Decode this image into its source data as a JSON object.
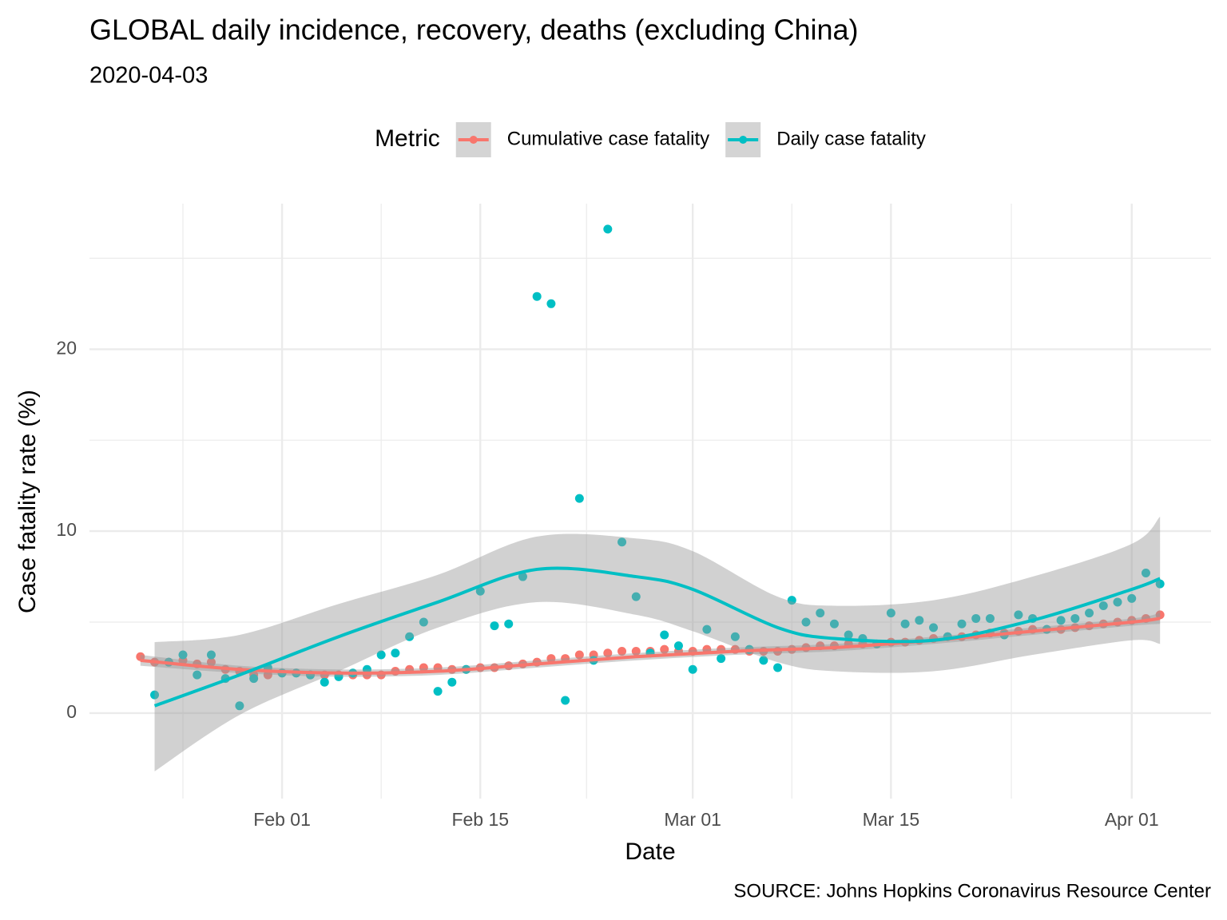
{
  "chart_data": {
    "type": "scatter",
    "title": "GLOBAL daily incidence, recovery, deaths (excluding China)",
    "subtitle": "2020-04-03",
    "x_label": "Date",
    "y_label": "Case fatality rate (%)",
    "caption": "SOURCE: Johns Hopkins Coronavirus Resource Center",
    "legend_title": "Metric",
    "legend_position": "top",
    "grid": true,
    "x": [
      "Jan 22",
      "Jan 23",
      "Jan 24",
      "Jan 25",
      "Jan 26",
      "Jan 27",
      "Jan 28",
      "Jan 29",
      "Jan 30",
      "Jan 31",
      "Feb 01",
      "Feb 02",
      "Feb 03",
      "Feb 04",
      "Feb 05",
      "Feb 06",
      "Feb 07",
      "Feb 08",
      "Feb 09",
      "Feb 10",
      "Feb 11",
      "Feb 12",
      "Feb 13",
      "Feb 14",
      "Feb 15",
      "Feb 16",
      "Feb 17",
      "Feb 18",
      "Feb 19",
      "Feb 20",
      "Feb 21",
      "Feb 22",
      "Feb 23",
      "Feb 24",
      "Feb 25",
      "Feb 26",
      "Feb 27",
      "Feb 28",
      "Feb 29",
      "Mar 01",
      "Mar 02",
      "Mar 03",
      "Mar 04",
      "Mar 05",
      "Mar 06",
      "Mar 07",
      "Mar 08",
      "Mar 09",
      "Mar 10",
      "Mar 11",
      "Mar 12",
      "Mar 13",
      "Mar 14",
      "Mar 15",
      "Mar 16",
      "Mar 17",
      "Mar 18",
      "Mar 19",
      "Mar 20",
      "Mar 21",
      "Mar 22",
      "Mar 23",
      "Mar 24",
      "Mar 25",
      "Mar 26",
      "Mar 27",
      "Mar 28",
      "Mar 29",
      "Mar 30",
      "Mar 31",
      "Apr 01",
      "Apr 02",
      "Apr 03"
    ],
    "xticks": [
      "Feb 01",
      "Feb 15",
      "Mar 01",
      "Mar 15",
      "Apr 01"
    ],
    "ylim": [
      -4.7,
      28
    ],
    "yticks": [
      0,
      10,
      20
    ],
    "series": [
      {
        "name": "Cumulative case fatality",
        "color": "#F8766D",
        "values": [
          3.1,
          2.8,
          2.8,
          2.9,
          2.7,
          2.8,
          2.4,
          2.3,
          2.1,
          2.1,
          2.2,
          2.2,
          2.1,
          2.1,
          2.1,
          2.1,
          2.1,
          2.1,
          2.3,
          2.4,
          2.5,
          2.5,
          2.4,
          2.4,
          2.5,
          2.5,
          2.6,
          2.7,
          2.8,
          3.0,
          3.0,
          3.2,
          3.2,
          3.3,
          3.4,
          3.4,
          3.4,
          3.5,
          3.4,
          3.4,
          3.5,
          3.5,
          3.5,
          3.4,
          3.4,
          3.4,
          3.5,
          3.6,
          3.7,
          3.7,
          3.8,
          3.8,
          3.8,
          3.9,
          3.9,
          4.0,
          4.1,
          4.2,
          4.2,
          4.3,
          4.4,
          4.4,
          4.5,
          4.6,
          4.6,
          4.6,
          4.7,
          4.8,
          4.9,
          5.0,
          5.1,
          5.2,
          5.4
        ],
        "smooth": {
          "x": [
            "Jan 22",
            "Jan 29",
            "Feb 05",
            "Feb 12",
            "Feb 19",
            "Feb 26",
            "Mar 04",
            "Mar 11",
            "Mar 18",
            "Mar 25",
            "Apr 01",
            "Apr 03"
          ],
          "fit": [
            2.9,
            2.4,
            2.2,
            2.3,
            2.7,
            3.1,
            3.4,
            3.6,
            4.0,
            4.5,
            5.0,
            5.2
          ],
          "lower": [
            2.6,
            2.2,
            2.0,
            2.1,
            2.5,
            2.9,
            3.2,
            3.4,
            3.8,
            4.3,
            4.8,
            4.9
          ],
          "upper": [
            3.2,
            2.6,
            2.4,
            2.5,
            2.9,
            3.3,
            3.6,
            3.8,
            4.2,
            4.7,
            5.2,
            5.5
          ]
        }
      },
      {
        "name": "Daily case fatality",
        "color": "#00BFC4",
        "values": [
          null,
          1.0,
          2.8,
          3.2,
          2.1,
          3.2,
          1.9,
          0.4,
          1.9,
          2.5,
          2.2,
          2.2,
          2.1,
          1.7,
          2.0,
          2.2,
          2.4,
          3.2,
          3.3,
          4.2,
          5.0,
          1.2,
          1.7,
          2.4,
          6.7,
          4.8,
          4.9,
          7.5,
          22.9,
          22.5,
          0.7,
          11.8,
          2.9,
          26.6,
          9.4,
          6.4,
          3.3,
          4.3,
          3.7,
          2.4,
          4.6,
          3.0,
          4.2,
          3.5,
          2.9,
          2.5,
          6.2,
          5.0,
          5.5,
          4.9,
          4.3,
          4.1,
          3.8,
          5.5,
          4.9,
          5.1,
          4.7,
          4.2,
          4.9,
          5.2,
          5.2,
          4.3,
          5.4,
          5.2,
          4.6,
          5.1,
          5.2,
          5.5,
          5.9,
          6.1,
          6.3,
          7.7,
          7.1
        ],
        "smooth": {
          "x": [
            "Jan 23",
            "Jan 29",
            "Feb 05",
            "Feb 12",
            "Feb 19",
            "Feb 26",
            "Mar 01",
            "Mar 07",
            "Mar 11",
            "Mar 18",
            "Mar 25",
            "Apr 01",
            "Apr 03"
          ],
          "fit": [
            0.4,
            2.1,
            4.2,
            6.1,
            7.9,
            7.5,
            6.8,
            4.7,
            4.1,
            4.0,
            5.1,
            6.8,
            7.4
          ],
          "lower": [
            -3.2,
            -0.1,
            2.3,
            4.7,
            6.1,
            5.4,
            4.5,
            2.8,
            2.3,
            2.3,
            3.2,
            4.0,
            3.8
          ],
          "upper": [
            3.9,
            4.3,
            6.0,
            7.6,
            9.7,
            9.6,
            8.9,
            6.4,
            5.9,
            6.2,
            7.5,
            9.3,
            10.8
          ]
        }
      }
    ]
  }
}
